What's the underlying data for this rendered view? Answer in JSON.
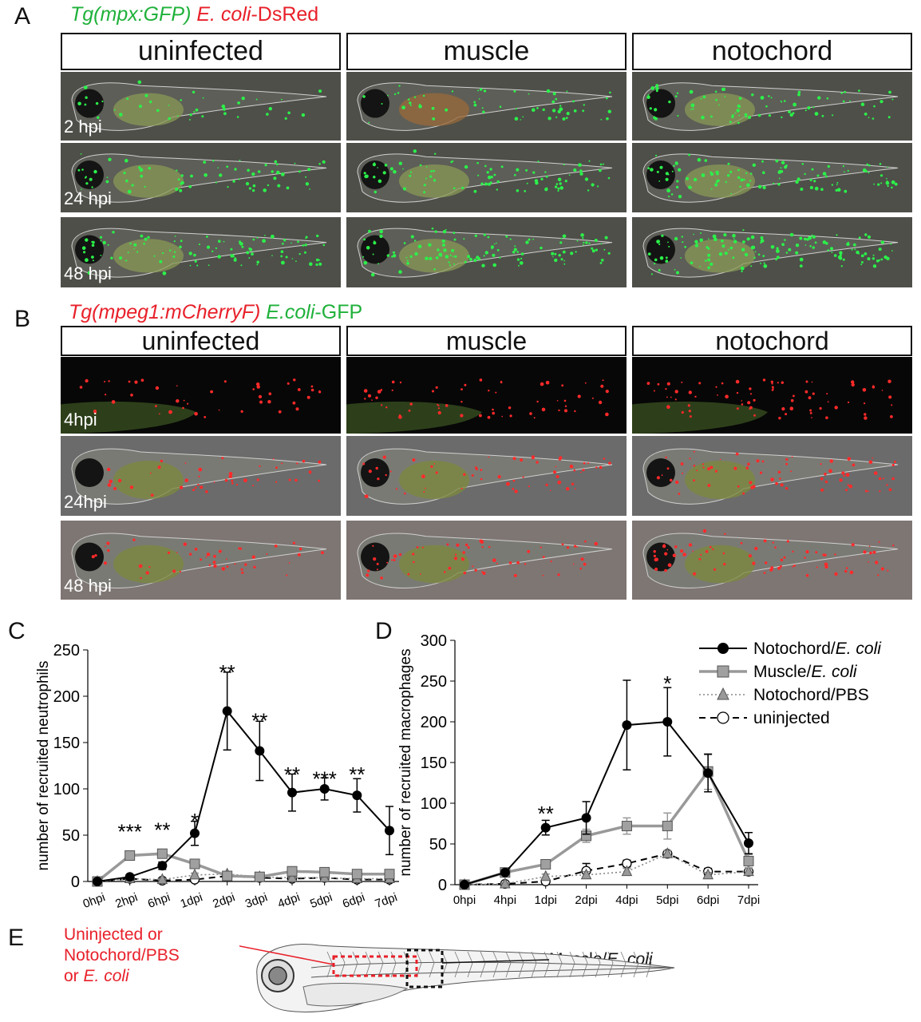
{
  "panelA": {
    "letter": "A",
    "title_green": "Tg(mpx:GFP)",
    "title_red_italic": "E. coli",
    "title_red_rest": "-DsRed",
    "columns": [
      "uninfected",
      "muscle",
      "notochord"
    ],
    "timepoints": [
      "2 hpi",
      "24 hpi",
      "48 hpi"
    ]
  },
  "panelB": {
    "letter": "B",
    "title_red": "Tg(mpeg1:mCherryF)",
    "title_green_italic": "E.coli",
    "title_green_rest": "-GFP",
    "columns": [
      "uninfected",
      "muscle",
      "notochord"
    ],
    "timepoints": [
      "4hpi",
      "24hpi",
      "48 hpi"
    ]
  },
  "panelE": {
    "letter": "E",
    "red_label": [
      "Uninjected or",
      "Notochord/PBS",
      "or "
    ],
    "red_label_italic": "E. coli",
    "black_label": "Muscle/",
    "black_label_italic": "E. coli"
  },
  "chart_data": [
    {
      "panel": "C",
      "type": "line",
      "ylabel": "number of recruited neutrophils",
      "ylim": [
        0,
        250
      ],
      "yticks": [
        0,
        50,
        100,
        150,
        200,
        250
      ],
      "categories": [
        "0hpi",
        "2hpi",
        "6hpi",
        "1dpi",
        "2dpi",
        "3dpi",
        "4dpi",
        "5dpi",
        "6dpi",
        "7dpi"
      ],
      "series": [
        {
          "name": "Notochord/E. coli",
          "values": [
            0,
            5,
            17,
            52,
            184,
            141,
            96,
            100,
            93,
            55
          ],
          "errors": [
            0,
            2,
            4,
            13,
            42,
            32,
            20,
            12,
            18,
            26
          ],
          "color": "#000000",
          "marker": "circle-filled",
          "line": "solid"
        },
        {
          "name": "Muscle/E. coli",
          "values": [
            0,
            28,
            30,
            19,
            6,
            5,
            11,
            10,
            8,
            8
          ],
          "errors": [
            0,
            3,
            4,
            3,
            2,
            2,
            3,
            3,
            2,
            2
          ],
          "color": "#999999",
          "marker": "square",
          "line": "solid"
        },
        {
          "name": "Notochord/PBS",
          "values": [
            0,
            3,
            2,
            7,
            8,
            5,
            4,
            4,
            3,
            3
          ],
          "errors": [
            0,
            1,
            1,
            2,
            2,
            1,
            1,
            1,
            1,
            1
          ],
          "color": "#888888",
          "marker": "triangle",
          "line": "dotted"
        },
        {
          "name": "uninjected",
          "values": [
            0,
            3,
            1,
            2,
            6,
            4,
            3,
            4,
            2,
            2
          ],
          "errors": [
            0,
            1,
            1,
            1,
            1,
            1,
            1,
            1,
            1,
            1
          ],
          "color": "#000000",
          "marker": "circle-open",
          "line": "dashed"
        }
      ],
      "annotations": [
        {
          "category": "2hpi",
          "text": "***",
          "y": 58
        },
        {
          "category": "6hpi",
          "text": "**",
          "y": 60
        },
        {
          "category": "1dpi",
          "text": "*",
          "y": 70
        },
        {
          "category": "2dpi",
          "text": "**",
          "y": 230
        },
        {
          "category": "3dpi",
          "text": "**",
          "y": 178
        },
        {
          "category": "4dpi",
          "text": "**",
          "y": 120
        },
        {
          "category": "5dpi",
          "text": "***",
          "y": 115
        },
        {
          "category": "6dpi",
          "text": "**",
          "y": 120
        }
      ]
    },
    {
      "panel": "D",
      "type": "line",
      "ylabel": "number of recruited macrophages",
      "ylim": [
        0,
        300
      ],
      "yticks": [
        0,
        50,
        100,
        150,
        200,
        250,
        300
      ],
      "categories": [
        "0hpi",
        "4hpi",
        "1dpi",
        "2dpi",
        "4dpi",
        "5dpi",
        "6dpi",
        "7dpi"
      ],
      "series": [
        {
          "name": "Notochord/E. coli",
          "values": [
            0,
            15,
            70,
            82,
            196,
            200,
            137,
            51
          ],
          "errors": [
            0,
            3,
            9,
            20,
            55,
            42,
            23,
            13
          ],
          "color": "#000000",
          "marker": "circle-filled",
          "line": "solid"
        },
        {
          "name": "Muscle/E. coli",
          "values": [
            0,
            15,
            25,
            60,
            72,
            72,
            139,
            29
          ],
          "errors": [
            0,
            2,
            4,
            8,
            10,
            16,
            22,
            8
          ],
          "color": "#999999",
          "marker": "square",
          "line": "solid"
        },
        {
          "name": "Notochord/PBS",
          "values": [
            0,
            1,
            10,
            12,
            16,
            38,
            12,
            16
          ],
          "errors": [
            0,
            1,
            3,
            4,
            4,
            4,
            3,
            4
          ],
          "color": "#888888",
          "marker": "triangle",
          "line": "dotted"
        },
        {
          "name": "uninjected",
          "values": [
            0,
            1,
            4,
            17,
            26,
            38,
            16,
            16
          ],
          "errors": [
            0,
            1,
            2,
            9,
            4,
            3,
            4,
            4
          ],
          "color": "#000000",
          "marker": "circle-open",
          "line": "dashed"
        }
      ],
      "annotations": [
        {
          "category": "1dpi",
          "text": "**",
          "y": 92
        },
        {
          "category": "5dpi",
          "text": "*",
          "y": 252
        }
      ],
      "legend": {
        "placement": "top-right",
        "entries": [
          {
            "prefix": "Notochord/",
            "italic": "E. coli"
          },
          {
            "prefix": "Muscle/",
            "italic": "E. coli"
          },
          {
            "prefix": "Notochord/PBS",
            "italic": ""
          },
          {
            "prefix": "uninjected",
            "italic": ""
          }
        ]
      }
    }
  ]
}
